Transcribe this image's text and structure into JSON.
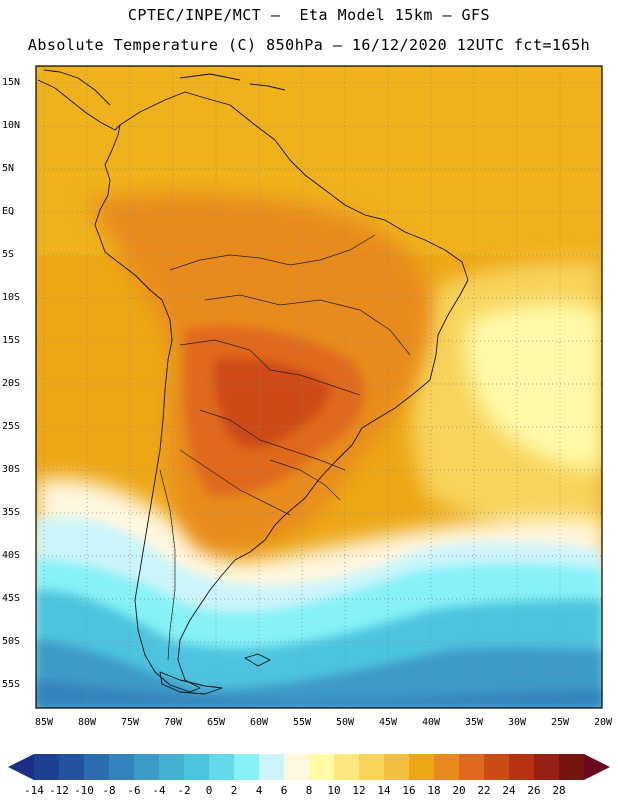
{
  "title": {
    "line1": "CPTEC/INPE/MCT –  Eta Model 15km – GFS",
    "line2": "Absolute Temperature (C) 850hPa – 16/12/2020 12UTC fct=165h"
  },
  "lat_labels": [
    "15N",
    "10N",
    "5N",
    "EQ",
    "5S",
    "10S",
    "15S",
    "20S",
    "25S",
    "30S",
    "35S",
    "40S",
    "45S",
    "50S",
    "55S"
  ],
  "lon_labels": [
    "85W",
    "80W",
    "75W",
    "70W",
    "65W",
    "60W",
    "55W",
    "50W",
    "45W",
    "40W",
    "35W",
    "30W",
    "25W",
    "20W"
  ],
  "colorbar": {
    "labels": [
      "-14",
      "-12",
      "-10",
      "-8",
      "-6",
      "-4",
      "-2",
      "0",
      "2",
      "4",
      "6",
      "8",
      "10",
      "12",
      "14",
      "16",
      "18",
      "20",
      "22",
      "24",
      "26",
      "28"
    ],
    "colors": [
      "#1d3f8f",
      "#23539f",
      "#2c6db0",
      "#3583bd",
      "#3c9ac9",
      "#44b0d4",
      "#4dc4df",
      "#63d9eb",
      "#86f2f7",
      "#ccf5fb",
      "#fff7e0",
      "#fffaa8",
      "#fde77f",
      "#f8d45b",
      "#f2be3d",
      "#eda716",
      "#e98b1c",
      "#e0691d",
      "#cd4a14",
      "#b83211",
      "#962112",
      "#73140f"
    ],
    "low_arrow": "#1b2f86",
    "high_arrow": "#6a0a1e"
  }
}
